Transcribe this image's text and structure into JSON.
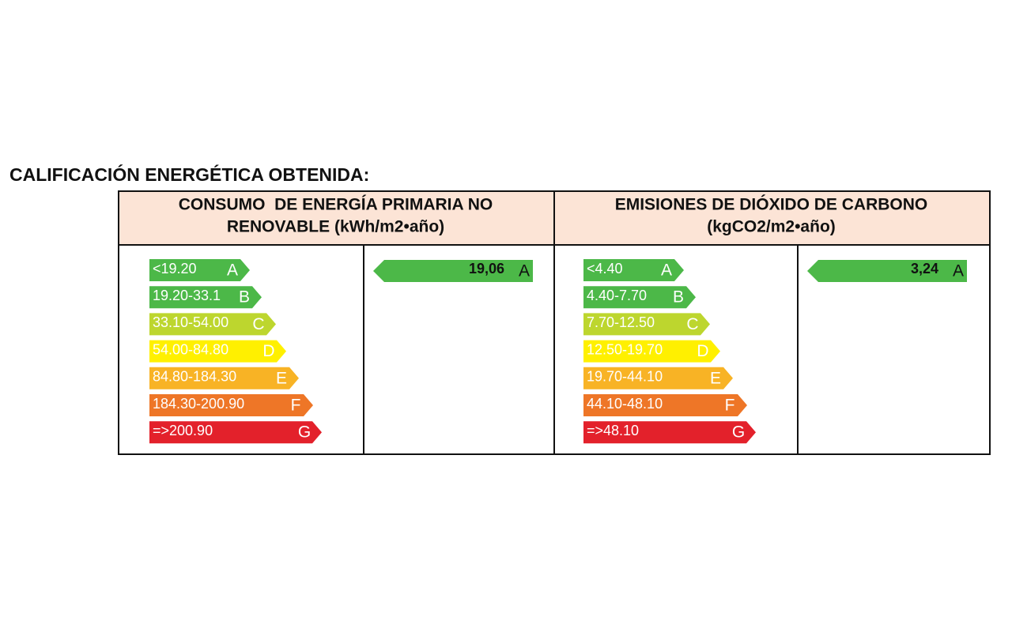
{
  "title": "CALIFICACIÓN ENERGÉTICA OBTENIDA:",
  "panels": [
    {
      "header": [
        "CONSUMO  DE ENERGÍA PRIMARIA NO",
        "RENOVABLE (kWh/m2•año)"
      ],
      "scale": [
        {
          "range": "<19.20",
          "grade": "A",
          "color": "#4cb848"
        },
        {
          "range": "19.20-33.1",
          "grade": "B",
          "color": "#4cb848"
        },
        {
          "range": "33.10-54.00",
          "grade": "C",
          "color": "#bdd62e"
        },
        {
          "range": "54.00-84.80",
          "grade": "D",
          "color": "#fff000"
        },
        {
          "range": "84.80-184.30",
          "grade": "E",
          "color": "#f8b325"
        },
        {
          "range": "184.30-200.90",
          "grade": "F",
          "color": "#ee7627"
        },
        {
          "range": "=>200.90",
          "grade": "G",
          "color": "#e3212b"
        }
      ],
      "result": {
        "value": "19,06",
        "grade": "A",
        "color": "#4cb848"
      }
    },
    {
      "header": [
        "EMISIONES DE DIÓXIDO DE CARBONO",
        "(kgCO2/m2•año)"
      ],
      "scale": [
        {
          "range": "<4.40",
          "grade": "A",
          "color": "#4cb848"
        },
        {
          "range": "4.40-7.70",
          "grade": "B",
          "color": "#4cb848"
        },
        {
          "range": "7.70-12.50",
          "grade": "C",
          "color": "#bdd62e"
        },
        {
          "range": "12.50-19.70",
          "grade": "D",
          "color": "#fff000"
        },
        {
          "range": "19.70-44.10",
          "grade": "E",
          "color": "#f8b325"
        },
        {
          "range": "44.10-48.10",
          "grade": "F",
          "color": "#ee7627"
        },
        {
          "range": "=>48.10",
          "grade": "G",
          "color": "#e3212b"
        }
      ],
      "result": {
        "value": "3,24",
        "grade": "A",
        "color": "#4cb848"
      }
    }
  ]
}
